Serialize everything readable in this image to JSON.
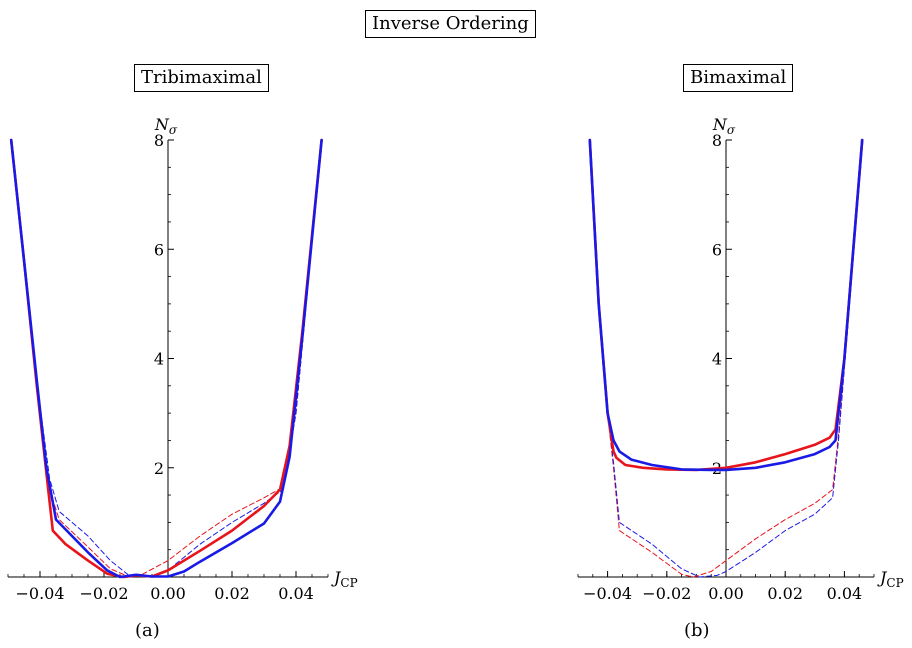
{
  "title": "Inverse Ordering",
  "panels": [
    {
      "title": "Tribimaximal",
      "caption": "(a)"
    },
    {
      "title": "Bimaximal",
      "caption": "(b)"
    }
  ],
  "chart_data": [
    {
      "type": "line",
      "title": "Tribimaximal",
      "xlabel": "J_CP",
      "ylabel": "N_σ",
      "xlim": [
        -0.05,
        0.05
      ],
      "ylim": [
        0,
        8
      ],
      "x_ticks": [
        -0.04,
        -0.02,
        0.0,
        0.02,
        0.04
      ],
      "x_tick_labels": [
        "−0.04",
        "−0.02",
        "0.00",
        "0.02",
        "0.04"
      ],
      "y_ticks": [
        2,
        4,
        6,
        8
      ],
      "y_tick_labels": [
        "2",
        "4",
        "6",
        "8"
      ],
      "colors": {
        "red": "#e8141c",
        "blue": "#1a1ae6"
      },
      "series": [
        {
          "color": "red",
          "dashed": false,
          "x": [
            -0.049,
            -0.045,
            -0.041,
            -0.038,
            -0.036,
            -0.032,
            -0.025,
            -0.019,
            -0.014,
            -0.01,
            -0.005,
            0.0,
            0.01,
            0.02,
            0.03,
            0.035,
            0.038,
            0.042,
            0.048
          ],
          "y": [
            8.0,
            5.8,
            3.5,
            1.9,
            0.85,
            0.6,
            0.3,
            0.06,
            0.0,
            0.03,
            0.01,
            0.12,
            0.48,
            0.85,
            1.3,
            1.6,
            2.4,
            4.5,
            8.0
          ]
        },
        {
          "color": "blue",
          "dashed": false,
          "x": [
            -0.049,
            -0.045,
            -0.041,
            -0.038,
            -0.035,
            -0.03,
            -0.025,
            -0.019,
            -0.015,
            -0.01,
            -0.005,
            0.0,
            0.005,
            0.01,
            0.02,
            0.03,
            0.035,
            0.038,
            0.042,
            0.048
          ],
          "y": [
            8.0,
            5.8,
            3.6,
            2.0,
            1.05,
            0.75,
            0.45,
            0.12,
            0.0,
            0.04,
            0.01,
            0.01,
            0.1,
            0.28,
            0.62,
            0.98,
            1.38,
            2.2,
            4.4,
            8.0
          ]
        },
        {
          "color": "red",
          "dashed": true,
          "x": [
            -0.049,
            -0.045,
            -0.041,
            -0.037,
            -0.034,
            -0.025,
            -0.018,
            -0.012,
            -0.008,
            0.0,
            0.01,
            0.02,
            0.03,
            0.036,
            0.04,
            0.048
          ],
          "y": [
            8.0,
            5.8,
            3.5,
            1.6,
            1.05,
            0.55,
            0.15,
            0.0,
            0.05,
            0.3,
            0.75,
            1.15,
            1.45,
            1.65,
            3.0,
            8.0
          ]
        },
        {
          "color": "blue",
          "dashed": true,
          "x": [
            -0.049,
            -0.045,
            -0.041,
            -0.037,
            -0.034,
            -0.025,
            -0.018,
            -0.012,
            -0.005,
            0.0,
            0.01,
            0.02,
            0.03,
            0.036,
            0.04,
            0.048
          ],
          "y": [
            8.0,
            5.8,
            3.6,
            1.8,
            1.2,
            0.75,
            0.3,
            0.02,
            0.0,
            0.12,
            0.6,
            1.0,
            1.35,
            1.6,
            3.0,
            8.0
          ]
        }
      ]
    },
    {
      "type": "line",
      "title": "Bimaximal",
      "xlabel": "J_CP",
      "ylabel": "N_σ",
      "xlim": [
        -0.05,
        0.05
      ],
      "ylim": [
        0,
        8
      ],
      "x_ticks": [
        -0.04,
        -0.02,
        0.0,
        0.02,
        0.04
      ],
      "x_tick_labels": [
        "−0.04",
        "−0.02",
        "0.00",
        "0.02",
        "0.04"
      ],
      "y_ticks": [
        2,
        4,
        6,
        8
      ],
      "y_tick_labels": [
        "2",
        "4",
        "6",
        "8"
      ],
      "colors": {
        "red": "#e8141c",
        "blue": "#1a1ae6"
      },
      "series": [
        {
          "color": "red",
          "dashed": false,
          "x": [
            -0.046,
            -0.043,
            -0.04,
            -0.038,
            -0.037,
            -0.034,
            -0.028,
            -0.02,
            -0.01,
            0.0,
            0.01,
            0.02,
            0.03,
            0.035,
            0.037,
            0.04,
            0.043,
            0.046
          ],
          "y": [
            8.0,
            5.0,
            3.0,
            2.3,
            2.18,
            2.05,
            2.0,
            1.97,
            1.96,
            2.0,
            2.1,
            2.25,
            2.42,
            2.55,
            2.7,
            4.0,
            6.0,
            8.0
          ]
        },
        {
          "color": "blue",
          "dashed": false,
          "x": [
            -0.046,
            -0.043,
            -0.04,
            -0.038,
            -0.036,
            -0.032,
            -0.025,
            -0.015,
            -0.005,
            0.0,
            0.01,
            0.02,
            0.03,
            0.035,
            0.037,
            0.04,
            0.043,
            0.046
          ],
          "y": [
            8.0,
            5.0,
            3.0,
            2.5,
            2.3,
            2.15,
            2.05,
            1.97,
            1.96,
            1.96,
            2.0,
            2.1,
            2.25,
            2.38,
            2.5,
            4.0,
            6.0,
            8.0
          ]
        },
        {
          "color": "red",
          "dashed": true,
          "x": [
            -0.046,
            -0.043,
            -0.04,
            -0.038,
            -0.036,
            -0.025,
            -0.015,
            -0.011,
            -0.005,
            0.0,
            0.01,
            0.02,
            0.03,
            0.036,
            0.038,
            0.041,
            0.046
          ],
          "y": [
            8.0,
            5.0,
            3.0,
            2.0,
            0.85,
            0.45,
            0.05,
            0.0,
            0.1,
            0.3,
            0.7,
            1.05,
            1.35,
            1.6,
            2.6,
            4.5,
            8.0
          ]
        },
        {
          "color": "blue",
          "dashed": true,
          "x": [
            -0.046,
            -0.043,
            -0.04,
            -0.038,
            -0.036,
            -0.025,
            -0.015,
            -0.009,
            -0.003,
            0.0,
            0.01,
            0.02,
            0.03,
            0.036,
            0.038,
            0.041,
            0.046
          ],
          "y": [
            8.0,
            5.0,
            3.0,
            2.1,
            1.0,
            0.6,
            0.15,
            0.0,
            0.03,
            0.1,
            0.45,
            0.85,
            1.15,
            1.45,
            2.5,
            4.5,
            8.0
          ]
        }
      ]
    }
  ]
}
